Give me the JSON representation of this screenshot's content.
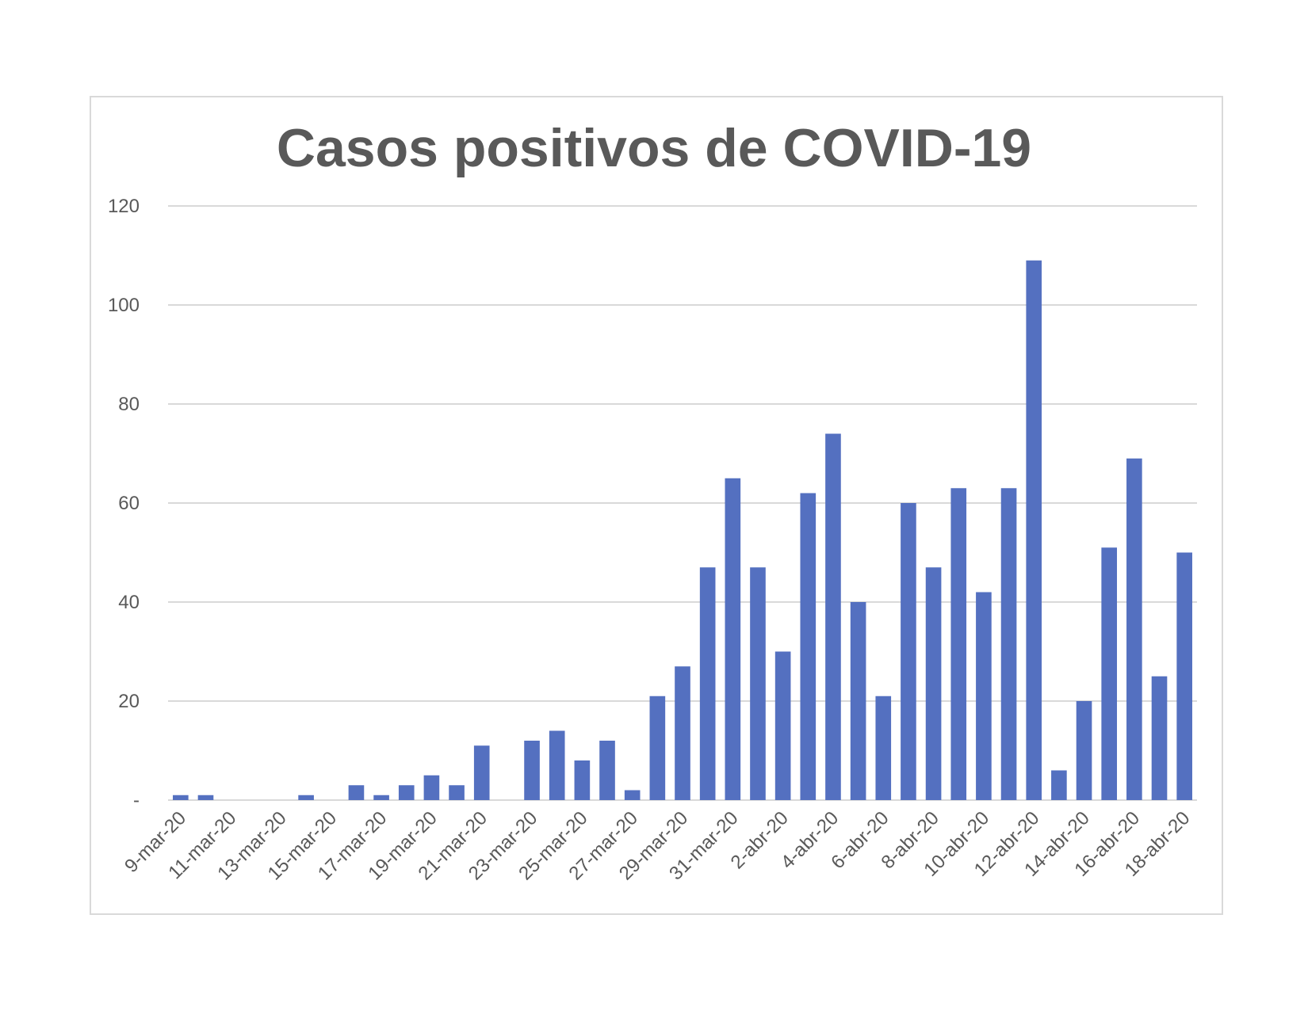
{
  "chart_data": {
    "type": "bar",
    "title": "Casos positivos de COVID-19",
    "xlabel": "",
    "ylabel": "",
    "ylim": [
      0,
      120
    ],
    "yticks": [
      {
        "value": 0,
        "label": "-"
      },
      {
        "value": 20,
        "label": "20"
      },
      {
        "value": 40,
        "label": "40"
      },
      {
        "value": 60,
        "label": "60"
      },
      {
        "value": 80,
        "label": "80"
      },
      {
        "value": 100,
        "label": "100"
      },
      {
        "value": 120,
        "label": "120"
      }
    ],
    "grid": true,
    "bar_color": "#5470C0",
    "categories": [
      "9-mar-20",
      "10-mar-20",
      "11-mar-20",
      "12-mar-20",
      "13-mar-20",
      "14-mar-20",
      "15-mar-20",
      "16-mar-20",
      "17-mar-20",
      "18-mar-20",
      "19-mar-20",
      "20-mar-20",
      "21-mar-20",
      "22-mar-20",
      "23-mar-20",
      "24-mar-20",
      "25-mar-20",
      "26-mar-20",
      "27-mar-20",
      "28-mar-20",
      "29-mar-20",
      "30-mar-20",
      "31-mar-20",
      "1-abr-20",
      "2-abr-20",
      "3-abr-20",
      "4-abr-20",
      "5-abr-20",
      "6-abr-20",
      "7-abr-20",
      "8-abr-20",
      "9-abr-20",
      "10-abr-20",
      "11-abr-20",
      "12-abr-20",
      "13-abr-20",
      "14-abr-20",
      "15-abr-20",
      "16-abr-20",
      "17-abr-20",
      "18-abr-20"
    ],
    "visible_tick_labels": [
      "9-mar-20",
      "11-mar-20",
      "13-mar-20",
      "15-mar-20",
      "17-mar-20",
      "19-mar-20",
      "21-mar-20",
      "23-mar-20",
      "25-mar-20",
      "27-mar-20",
      "29-mar-20",
      "31-mar-20",
      "2-abr-20",
      "4-abr-20",
      "6-abr-20",
      "8-abr-20",
      "10-abr-20",
      "12-abr-20",
      "14-abr-20",
      "16-abr-20",
      "18-abr-20"
    ],
    "values": [
      1,
      1,
      0,
      0,
      0,
      1,
      0,
      3,
      1,
      3,
      5,
      3,
      11,
      0,
      12,
      14,
      8,
      12,
      2,
      21,
      27,
      47,
      65,
      47,
      30,
      62,
      74,
      40,
      21,
      60,
      47,
      63,
      42,
      63,
      109,
      6,
      20,
      51,
      69,
      25,
      50
    ]
  }
}
